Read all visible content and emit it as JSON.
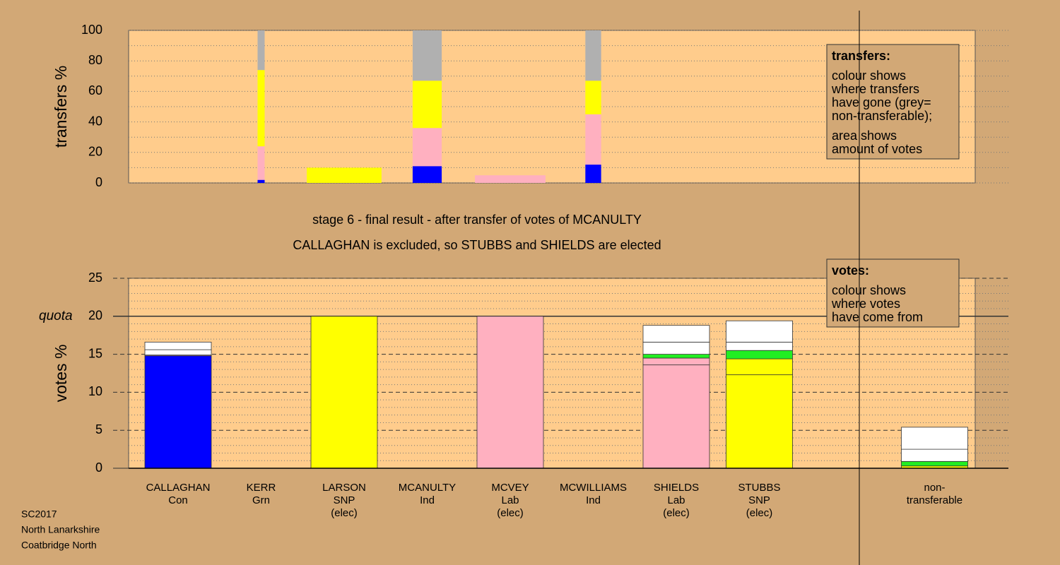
{
  "chart_data": [
    {
      "type": "bar",
      "ylabel": "transfers %",
      "ylim": [
        0,
        100
      ],
      "yticks": [
        0,
        20,
        40,
        60,
        80,
        100
      ],
      "minor_yticks": [
        10,
        30,
        50,
        70,
        90
      ],
      "amounts": [
        null,
        0.085,
        0.9,
        0.35,
        0.85,
        0.19,
        null,
        null,
        null,
        null
      ],
      "series": [
        {
          "color": "#0000ff",
          "values": [
            null,
            2,
            null,
            11,
            null,
            12,
            null,
            null,
            null,
            null
          ]
        },
        {
          "color": "#ffb0c0",
          "values": [
            null,
            22,
            null,
            25,
            5,
            33,
            null,
            null,
            null,
            null
          ]
        },
        {
          "color": "#ffff00",
          "values": [
            null,
            50,
            10,
            31,
            null,
            22,
            null,
            null,
            null,
            null
          ]
        },
        {
          "color": "#b0b0b0",
          "values": [
            null,
            26,
            null,
            33,
            null,
            33,
            null,
            null,
            null,
            null
          ]
        }
      ],
      "note": {
        "title": "transfers:",
        "lines": [
          [
            "colour shows",
            "where transfers",
            "have gone (grey=",
            "non-transferable);"
          ],
          [
            "area shows",
            "amount of votes"
          ]
        ]
      }
    },
    {
      "type": "bar",
      "title": [
        "stage 6 - final result - after transfer of votes of MCANULTY",
        "CALLAGHAN is excluded, so STUBBS and SHIELDS are elected"
      ],
      "ylabel": "votes %",
      "ylim": [
        0,
        25
      ],
      "yticks": [
        0,
        5,
        10,
        15,
        20,
        25
      ],
      "minor_yticks": [
        1,
        2,
        3,
        4,
        6,
        7,
        8,
        9,
        11,
        12,
        13,
        14,
        16,
        17,
        18,
        19,
        21,
        22,
        23,
        24
      ],
      "quota": 20,
      "quota_label": "quota",
      "categories": [
        [
          "CALLAGHAN",
          "Con"
        ],
        [
          "KERR",
          "Grn"
        ],
        [
          "LARSON",
          "SNP",
          "(elec)"
        ],
        [
          "MCANULTY",
          "Ind"
        ],
        [
          "MCVEY",
          "Lab",
          "(elec)"
        ],
        [
          "MCWILLIAMS",
          "Ind"
        ],
        [
          "SHIELDS",
          "Lab",
          "(elec)"
        ],
        [
          "STUBBS",
          "SNP",
          "(elec)"
        ],
        null,
        [
          "non-",
          "transferable"
        ]
      ],
      "series": [
        {
          "colors": [
            "#0000ff",
            "#00ee00",
            "#ffff00",
            "#ffffff",
            "#ffb0c0",
            "#ffffff",
            "#ffb0c0",
            "#ffff00",
            null,
            "#ffff00"
          ],
          "values": [
            14.8,
            0,
            20,
            0,
            20,
            0,
            13.6,
            12.3,
            null,
            0.3
          ]
        },
        {
          "colors": [
            "#ffb0c0",
            null,
            null,
            null,
            null,
            null,
            "#ffb0c0",
            "#ffff00",
            null,
            "#22ee22"
          ],
          "values": [
            0.1,
            null,
            null,
            null,
            null,
            null,
            0.9,
            2.1,
            null,
            0.6
          ]
        },
        {
          "colors": [
            null,
            null,
            null,
            null,
            null,
            null,
            "#22ee22",
            "#22ee22",
            null,
            null
          ],
          "values": [
            null,
            null,
            null,
            null,
            null,
            null,
            0.5,
            1.1,
            null,
            null
          ]
        },
        {
          "colors": [
            "#ffffff",
            null,
            null,
            null,
            null,
            null,
            "#ffffff",
            "#ffffff",
            null,
            "#ffffff"
          ],
          "values": [
            0.7,
            null,
            null,
            null,
            null,
            null,
            1.6,
            1.1,
            null,
            1.6
          ]
        },
        {
          "colors": [
            "#ffffff",
            null,
            null,
            null,
            null,
            null,
            "#ffffff",
            "#ffffff",
            null,
            "#ffffff"
          ],
          "values": [
            1.0,
            null,
            null,
            null,
            null,
            null,
            2.2,
            2.8,
            null,
            2.9
          ]
        }
      ],
      "note": {
        "title": "votes:",
        "lines": [
          [
            "colour shows",
            "where votes",
            "have come from"
          ]
        ]
      }
    }
  ],
  "footer": [
    "SC2017",
    "North Lanarkshire",
    "Coatbridge North"
  ]
}
